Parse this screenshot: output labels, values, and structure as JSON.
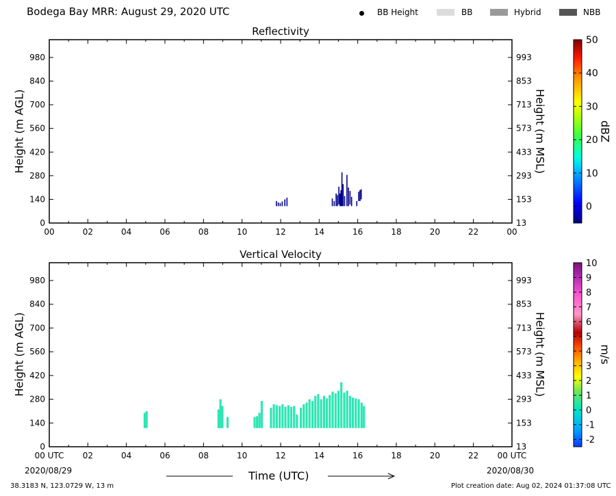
{
  "header": {
    "title": "Bodega Bay MRR:  August 29, 2020 UTC",
    "legend": [
      {
        "label": "BB Height",
        "kind": "dot",
        "color": "#000000"
      },
      {
        "label": "BB",
        "kind": "swatch",
        "color": "#dcdcdc"
      },
      {
        "label": "Hybrid",
        "kind": "swatch",
        "color": "#9a9a9a"
      },
      {
        "label": "NBB",
        "kind": "swatch",
        "color": "#555555"
      }
    ]
  },
  "footer": {
    "location": "38.3183 N, 123.0729 W, 13 m",
    "created": "Plot creation date: Aug 02, 2024 01:37:08 UTC",
    "start_date": "2020/08/29",
    "end_date": "2020/08/30",
    "xlabel": "Time (UTC)"
  },
  "chart_data": [
    {
      "type": "heatmap",
      "title": "Reflectivity",
      "ylabel_left": "Height (m AGL)",
      "ylabel_right": "Height (m MSL)",
      "xlabel": "",
      "xlim": [
        0,
        24
      ],
      "ylim": [
        0,
        1085
      ],
      "x_ticks": [
        "00",
        "02",
        "04",
        "06",
        "08",
        "10",
        "12",
        "14",
        "16",
        "18",
        "20",
        "22",
        "00"
      ],
      "y_ticks_left": [
        "0",
        "140",
        "280",
        "420",
        "560",
        "700",
        "840",
        "980"
      ],
      "y_ticks_right": [
        "13",
        "153",
        "293",
        "433",
        "573",
        "713",
        "853",
        "993"
      ],
      "colorbar": {
        "label": "dBZ",
        "min": -5,
        "max": 50,
        "ticks": [
          "0",
          "10",
          "20",
          "30",
          "40",
          "50"
        ]
      },
      "echo_color": "#00008b",
      "echoes": [
        {
          "t": 11.78,
          "bottom": 100,
          "top": 130
        },
        {
          "t": 11.88,
          "bottom": 100,
          "top": 122
        },
        {
          "t": 11.98,
          "bottom": 100,
          "top": 118
        },
        {
          "t": 12.08,
          "bottom": 100,
          "top": 128
        },
        {
          "t": 12.22,
          "bottom": 100,
          "top": 140
        },
        {
          "t": 12.33,
          "bottom": 100,
          "top": 150
        },
        {
          "t": 14.68,
          "bottom": 100,
          "top": 145
        },
        {
          "t": 14.78,
          "bottom": 100,
          "top": 130
        },
        {
          "t": 14.88,
          "bottom": 100,
          "top": 175
        },
        {
          "t": 14.95,
          "bottom": 100,
          "top": 165
        },
        {
          "t": 15.02,
          "bottom": 110,
          "top": 215
        },
        {
          "t": 15.08,
          "bottom": 100,
          "top": 175
        },
        {
          "t": 15.13,
          "bottom": 100,
          "top": 195
        },
        {
          "t": 15.18,
          "bottom": 100,
          "top": 300
        },
        {
          "t": 15.24,
          "bottom": 100,
          "top": 230
        },
        {
          "t": 15.32,
          "bottom": 100,
          "top": 160
        },
        {
          "t": 15.44,
          "bottom": 100,
          "top": 285
        },
        {
          "t": 15.52,
          "bottom": 100,
          "top": 210
        },
        {
          "t": 15.6,
          "bottom": 110,
          "top": 190
        },
        {
          "t": 15.68,
          "bottom": 100,
          "top": 155
        },
        {
          "t": 15.95,
          "bottom": 100,
          "top": 130
        },
        {
          "t": 16.05,
          "bottom": 130,
          "top": 185
        },
        {
          "t": 16.12,
          "bottom": 130,
          "top": 195
        },
        {
          "t": 16.18,
          "bottom": 140,
          "top": 200
        }
      ]
    },
    {
      "type": "heatmap",
      "title": "Vertical Velocity",
      "ylabel_left": "Height (m AGL)",
      "ylabel_right": "Height (m MSL)",
      "xlabel": "Time (UTC)",
      "xlim": [
        0,
        24
      ],
      "ylim": [
        0,
        1085
      ],
      "x_ticks": [
        "00 UTC",
        "02",
        "04",
        "06",
        "08",
        "10",
        "12",
        "14",
        "16",
        "18",
        "20",
        "22",
        "00 UTC"
      ],
      "y_ticks_left": [
        "0",
        "140",
        "280",
        "420",
        "560",
        "700",
        "840",
        "980"
      ],
      "y_ticks_right": [
        "13",
        "153",
        "293",
        "433",
        "573",
        "713",
        "853",
        "993"
      ],
      "colorbar": {
        "label": "m/s",
        "min": -2.5,
        "max": 10,
        "ticks": [
          "-2",
          "-1",
          "0",
          "1",
          "2",
          "3",
          "4",
          "5",
          "6",
          "7",
          "8",
          "9",
          "10"
        ]
      },
      "echo_color": "#2ee6b4",
      "echoes": [
        {
          "t": 4.95,
          "bottom": 110,
          "top": 200
        },
        {
          "t": 5.05,
          "bottom": 110,
          "top": 210
        },
        {
          "t": 8.78,
          "bottom": 110,
          "top": 220
        },
        {
          "t": 8.88,
          "bottom": 110,
          "top": 280
        },
        {
          "t": 8.98,
          "bottom": 110,
          "top": 240
        },
        {
          "t": 9.25,
          "bottom": 110,
          "top": 175
        },
        {
          "t": 10.65,
          "bottom": 110,
          "top": 175
        },
        {
          "t": 10.78,
          "bottom": 110,
          "top": 180
        },
        {
          "t": 10.9,
          "bottom": 110,
          "top": 200
        },
        {
          "t": 11.02,
          "bottom": 110,
          "top": 270
        },
        {
          "t": 11.5,
          "bottom": 110,
          "top": 230
        },
        {
          "t": 11.65,
          "bottom": 110,
          "top": 250
        },
        {
          "t": 11.8,
          "bottom": 110,
          "top": 245
        },
        {
          "t": 11.95,
          "bottom": 110,
          "top": 240
        },
        {
          "t": 12.1,
          "bottom": 110,
          "top": 250
        },
        {
          "t": 12.25,
          "bottom": 110,
          "top": 235
        },
        {
          "t": 12.4,
          "bottom": 110,
          "top": 245
        },
        {
          "t": 12.55,
          "bottom": 110,
          "top": 235
        },
        {
          "t": 12.7,
          "bottom": 110,
          "top": 240
        },
        {
          "t": 12.85,
          "bottom": 110,
          "top": 190
        },
        {
          "t": 13.05,
          "bottom": 110,
          "top": 230
        },
        {
          "t": 13.2,
          "bottom": 110,
          "top": 250
        },
        {
          "t": 13.35,
          "bottom": 110,
          "top": 260
        },
        {
          "t": 13.5,
          "bottom": 110,
          "top": 280
        },
        {
          "t": 13.65,
          "bottom": 110,
          "top": 270
        },
        {
          "t": 13.8,
          "bottom": 110,
          "top": 300
        },
        {
          "t": 13.95,
          "bottom": 110,
          "top": 310
        },
        {
          "t": 14.1,
          "bottom": 110,
          "top": 280
        },
        {
          "t": 14.25,
          "bottom": 110,
          "top": 300
        },
        {
          "t": 14.4,
          "bottom": 110,
          "top": 285
        },
        {
          "t": 14.55,
          "bottom": 110,
          "top": 305
        },
        {
          "t": 14.7,
          "bottom": 110,
          "top": 325
        },
        {
          "t": 14.85,
          "bottom": 110,
          "top": 315
        },
        {
          "t": 15.0,
          "bottom": 110,
          "top": 330
        },
        {
          "t": 15.15,
          "bottom": 110,
          "top": 380
        },
        {
          "t": 15.3,
          "bottom": 110,
          "top": 320
        },
        {
          "t": 15.45,
          "bottom": 110,
          "top": 330
        },
        {
          "t": 15.6,
          "bottom": 110,
          "top": 300
        },
        {
          "t": 15.75,
          "bottom": 110,
          "top": 290
        },
        {
          "t": 15.9,
          "bottom": 110,
          "top": 285
        },
        {
          "t": 16.05,
          "bottom": 110,
          "top": 280
        },
        {
          "t": 16.2,
          "bottom": 110,
          "top": 260
        },
        {
          "t": 16.32,
          "bottom": 110,
          "top": 240
        }
      ]
    }
  ]
}
